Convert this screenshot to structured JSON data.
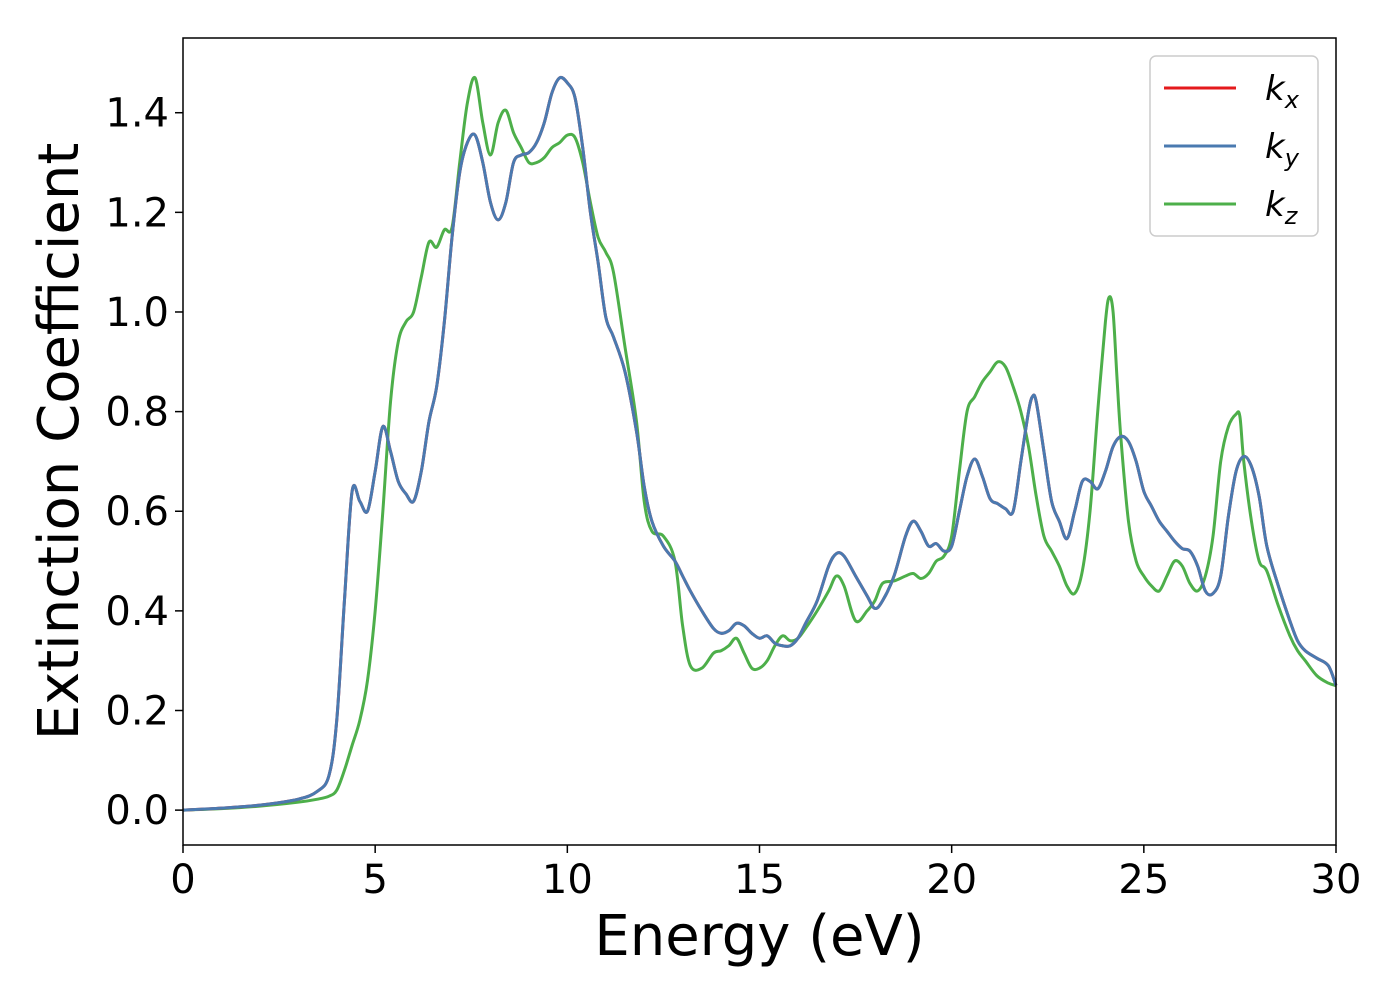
{
  "chart_data": {
    "type": "line",
    "xlabel": "Energy (eV)",
    "ylabel": "Extinction Coefficient",
    "xlim": [
      0,
      30
    ],
    "ylim": [
      -0.07,
      1.55
    ],
    "xticks": [
      0,
      5,
      10,
      15,
      20,
      25,
      30
    ],
    "xtick_labels": [
      "0",
      "5",
      "10",
      "15",
      "20",
      "25",
      "30"
    ],
    "yticks": [
      0.0,
      0.2,
      0.4,
      0.6,
      0.8,
      1.0,
      1.2,
      1.4
    ],
    "ytick_labels": [
      "0.0",
      "0.2",
      "0.4",
      "0.6",
      "0.8",
      "1.0",
      "1.2",
      "1.4"
    ],
    "grid": false,
    "legend_position": "top-right",
    "series": [
      {
        "name": "k",
        "subscript": "x",
        "color": "#e41a1c",
        "x": [
          0,
          1,
          2,
          3,
          3.5,
          3.8,
          4.0,
          4.2,
          4.4,
          4.6,
          4.8,
          5.0,
          5.2,
          5.4,
          5.6,
          5.8,
          6.0,
          6.2,
          6.4,
          6.6,
          6.8,
          7.0,
          7.2,
          7.4,
          7.6,
          7.8,
          8.0,
          8.2,
          8.4,
          8.6,
          8.8,
          9.0,
          9.2,
          9.4,
          9.6,
          9.8,
          10.0,
          10.2,
          10.4,
          10.6,
          10.8,
          11.0,
          11.2,
          11.5,
          11.8,
          12.0,
          12.2,
          12.5,
          12.8,
          13.0,
          13.2,
          13.5,
          13.8,
          14.0,
          14.2,
          14.4,
          14.6,
          14.8,
          15.0,
          15.2,
          15.4,
          15.6,
          15.8,
          16.0,
          16.2,
          16.5,
          16.8,
          17.0,
          17.2,
          17.5,
          17.8,
          18.0,
          18.2,
          18.5,
          18.8,
          19.0,
          19.2,
          19.4,
          19.6,
          19.8,
          20.0,
          20.2,
          20.4,
          20.6,
          20.8,
          21.0,
          21.2,
          21.4,
          21.6,
          21.8,
          22.0,
          22.1,
          22.2,
          22.4,
          22.6,
          22.8,
          23.0,
          23.2,
          23.4,
          23.6,
          23.8,
          24.0,
          24.2,
          24.4,
          24.6,
          24.8,
          25.0,
          25.2,
          25.4,
          25.6,
          25.8,
          26.0,
          26.2,
          26.4,
          26.6,
          26.8,
          27.0,
          27.2,
          27.4,
          27.6,
          27.8,
          28.0,
          28.2,
          28.5,
          28.8,
          29.0,
          29.2,
          29.5,
          29.8,
          30.0
        ],
        "y": [
          0.0,
          0.004,
          0.01,
          0.022,
          0.038,
          0.07,
          0.18,
          0.42,
          0.64,
          0.62,
          0.6,
          0.68,
          0.77,
          0.72,
          0.66,
          0.635,
          0.62,
          0.68,
          0.78,
          0.85,
          0.98,
          1.15,
          1.28,
          1.34,
          1.355,
          1.3,
          1.22,
          1.185,
          1.22,
          1.3,
          1.315,
          1.32,
          1.34,
          1.38,
          1.44,
          1.47,
          1.46,
          1.43,
          1.33,
          1.2,
          1.1,
          0.99,
          0.95,
          0.88,
          0.76,
          0.65,
          0.58,
          0.53,
          0.5,
          0.47,
          0.44,
          0.4,
          0.365,
          0.355,
          0.36,
          0.375,
          0.37,
          0.355,
          0.345,
          0.35,
          0.335,
          0.33,
          0.33,
          0.345,
          0.375,
          0.42,
          0.49,
          0.515,
          0.51,
          0.47,
          0.43,
          0.405,
          0.42,
          0.47,
          0.55,
          0.58,
          0.56,
          0.53,
          0.535,
          0.52,
          0.53,
          0.6,
          0.67,
          0.705,
          0.67,
          0.625,
          0.615,
          0.605,
          0.6,
          0.7,
          0.8,
          0.83,
          0.82,
          0.72,
          0.62,
          0.58,
          0.545,
          0.6,
          0.66,
          0.66,
          0.645,
          0.68,
          0.73,
          0.75,
          0.74,
          0.7,
          0.64,
          0.61,
          0.58,
          0.56,
          0.54,
          0.525,
          0.52,
          0.49,
          0.44,
          0.435,
          0.47,
          0.59,
          0.68,
          0.71,
          0.69,
          0.63,
          0.53,
          0.45,
          0.38,
          0.34,
          0.32,
          0.305,
          0.29,
          0.25
        ]
      },
      {
        "name": "k",
        "subscript": "y",
        "color": "#4a7ab0",
        "x": [
          0,
          1,
          2,
          3,
          3.5,
          3.8,
          4.0,
          4.2,
          4.4,
          4.6,
          4.8,
          5.0,
          5.2,
          5.4,
          5.6,
          5.8,
          6.0,
          6.2,
          6.4,
          6.6,
          6.8,
          7.0,
          7.2,
          7.4,
          7.6,
          7.8,
          8.0,
          8.2,
          8.4,
          8.6,
          8.8,
          9.0,
          9.2,
          9.4,
          9.6,
          9.8,
          10.0,
          10.2,
          10.4,
          10.6,
          10.8,
          11.0,
          11.2,
          11.5,
          11.8,
          12.0,
          12.2,
          12.5,
          12.8,
          13.0,
          13.2,
          13.5,
          13.8,
          14.0,
          14.2,
          14.4,
          14.6,
          14.8,
          15.0,
          15.2,
          15.4,
          15.6,
          15.8,
          16.0,
          16.2,
          16.5,
          16.8,
          17.0,
          17.2,
          17.5,
          17.8,
          18.0,
          18.2,
          18.5,
          18.8,
          19.0,
          19.2,
          19.4,
          19.6,
          19.8,
          20.0,
          20.2,
          20.4,
          20.6,
          20.8,
          21.0,
          21.2,
          21.4,
          21.6,
          21.8,
          22.0,
          22.1,
          22.2,
          22.4,
          22.6,
          22.8,
          23.0,
          23.2,
          23.4,
          23.6,
          23.8,
          24.0,
          24.2,
          24.4,
          24.6,
          24.8,
          25.0,
          25.2,
          25.4,
          25.6,
          25.8,
          26.0,
          26.2,
          26.4,
          26.6,
          26.8,
          27.0,
          27.2,
          27.4,
          27.6,
          27.8,
          28.0,
          28.2,
          28.5,
          28.8,
          29.0,
          29.2,
          29.5,
          29.8,
          30.0
        ],
        "y": [
          0.0,
          0.004,
          0.01,
          0.022,
          0.038,
          0.07,
          0.18,
          0.42,
          0.64,
          0.62,
          0.6,
          0.68,
          0.77,
          0.72,
          0.66,
          0.635,
          0.62,
          0.68,
          0.78,
          0.85,
          0.98,
          1.15,
          1.28,
          1.34,
          1.355,
          1.3,
          1.22,
          1.185,
          1.22,
          1.3,
          1.315,
          1.32,
          1.34,
          1.38,
          1.44,
          1.47,
          1.46,
          1.43,
          1.33,
          1.2,
          1.1,
          0.99,
          0.95,
          0.88,
          0.76,
          0.65,
          0.58,
          0.53,
          0.5,
          0.47,
          0.44,
          0.4,
          0.365,
          0.355,
          0.36,
          0.375,
          0.37,
          0.355,
          0.345,
          0.35,
          0.335,
          0.33,
          0.33,
          0.345,
          0.375,
          0.42,
          0.49,
          0.515,
          0.51,
          0.47,
          0.43,
          0.405,
          0.42,
          0.47,
          0.55,
          0.58,
          0.56,
          0.53,
          0.535,
          0.52,
          0.53,
          0.6,
          0.67,
          0.705,
          0.67,
          0.625,
          0.615,
          0.605,
          0.6,
          0.7,
          0.8,
          0.83,
          0.82,
          0.72,
          0.62,
          0.58,
          0.545,
          0.6,
          0.66,
          0.66,
          0.645,
          0.68,
          0.73,
          0.75,
          0.74,
          0.7,
          0.64,
          0.61,
          0.58,
          0.56,
          0.54,
          0.525,
          0.52,
          0.49,
          0.44,
          0.435,
          0.47,
          0.59,
          0.68,
          0.71,
          0.69,
          0.63,
          0.53,
          0.45,
          0.38,
          0.34,
          0.32,
          0.305,
          0.29,
          0.25
        ]
      },
      {
        "name": "k",
        "subscript": "z",
        "color": "#4daf4a",
        "x": [
          0,
          1,
          2,
          3,
          3.5,
          3.8,
          4.0,
          4.2,
          4.4,
          4.6,
          4.8,
          5.0,
          5.2,
          5.4,
          5.6,
          5.8,
          6.0,
          6.2,
          6.4,
          6.6,
          6.8,
          7.0,
          7.2,
          7.4,
          7.6,
          7.8,
          8.0,
          8.2,
          8.4,
          8.6,
          8.8,
          9.0,
          9.2,
          9.4,
          9.6,
          9.8,
          10.0,
          10.2,
          10.4,
          10.6,
          10.8,
          11.0,
          11.2,
          11.5,
          11.8,
          12.0,
          12.2,
          12.5,
          12.8,
          13.0,
          13.2,
          13.5,
          13.8,
          14.0,
          14.2,
          14.4,
          14.6,
          14.8,
          15.0,
          15.2,
          15.4,
          15.6,
          15.8,
          16.0,
          16.2,
          16.5,
          16.8,
          17.0,
          17.2,
          17.5,
          17.8,
          18.0,
          18.2,
          18.5,
          18.8,
          19.0,
          19.2,
          19.4,
          19.6,
          19.8,
          20.0,
          20.2,
          20.4,
          20.6,
          20.8,
          21.0,
          21.2,
          21.4,
          21.6,
          21.8,
          22.0,
          22.2,
          22.4,
          22.6,
          22.8,
          23.0,
          23.2,
          23.4,
          23.6,
          23.8,
          24.0,
          24.1,
          24.2,
          24.3,
          24.4,
          24.6,
          24.8,
          25.0,
          25.2,
          25.4,
          25.6,
          25.8,
          26.0,
          26.2,
          26.4,
          26.6,
          26.8,
          27.0,
          27.2,
          27.4,
          27.5,
          27.6,
          27.8,
          28.0,
          28.2,
          28.5,
          28.8,
          29.0,
          29.2,
          29.5,
          29.8,
          30.0
        ],
        "y": [
          0.0,
          0.003,
          0.008,
          0.016,
          0.022,
          0.028,
          0.04,
          0.08,
          0.13,
          0.18,
          0.26,
          0.4,
          0.6,
          0.82,
          0.94,
          0.98,
          1.0,
          1.07,
          1.14,
          1.13,
          1.165,
          1.17,
          1.3,
          1.42,
          1.47,
          1.38,
          1.315,
          1.38,
          1.405,
          1.36,
          1.33,
          1.3,
          1.3,
          1.31,
          1.33,
          1.34,
          1.355,
          1.35,
          1.3,
          1.22,
          1.15,
          1.12,
          1.08,
          0.93,
          0.78,
          0.62,
          0.56,
          0.55,
          0.5,
          0.37,
          0.29,
          0.285,
          0.315,
          0.32,
          0.33,
          0.345,
          0.315,
          0.285,
          0.285,
          0.3,
          0.33,
          0.35,
          0.34,
          0.345,
          0.365,
          0.4,
          0.44,
          0.47,
          0.45,
          0.38,
          0.4,
          0.42,
          0.455,
          0.46,
          0.47,
          0.475,
          0.465,
          0.475,
          0.5,
          0.51,
          0.55,
          0.68,
          0.8,
          0.83,
          0.86,
          0.88,
          0.9,
          0.89,
          0.85,
          0.8,
          0.73,
          0.63,
          0.55,
          0.52,
          0.49,
          0.45,
          0.435,
          0.48,
          0.6,
          0.8,
          0.98,
          1.03,
          1.0,
          0.87,
          0.75,
          0.58,
          0.5,
          0.47,
          0.45,
          0.44,
          0.47,
          0.5,
          0.49,
          0.455,
          0.44,
          0.47,
          0.55,
          0.7,
          0.77,
          0.795,
          0.79,
          0.7,
          0.58,
          0.5,
          0.48,
          0.41,
          0.35,
          0.32,
          0.3,
          0.27,
          0.255,
          0.25
        ]
      }
    ]
  }
}
